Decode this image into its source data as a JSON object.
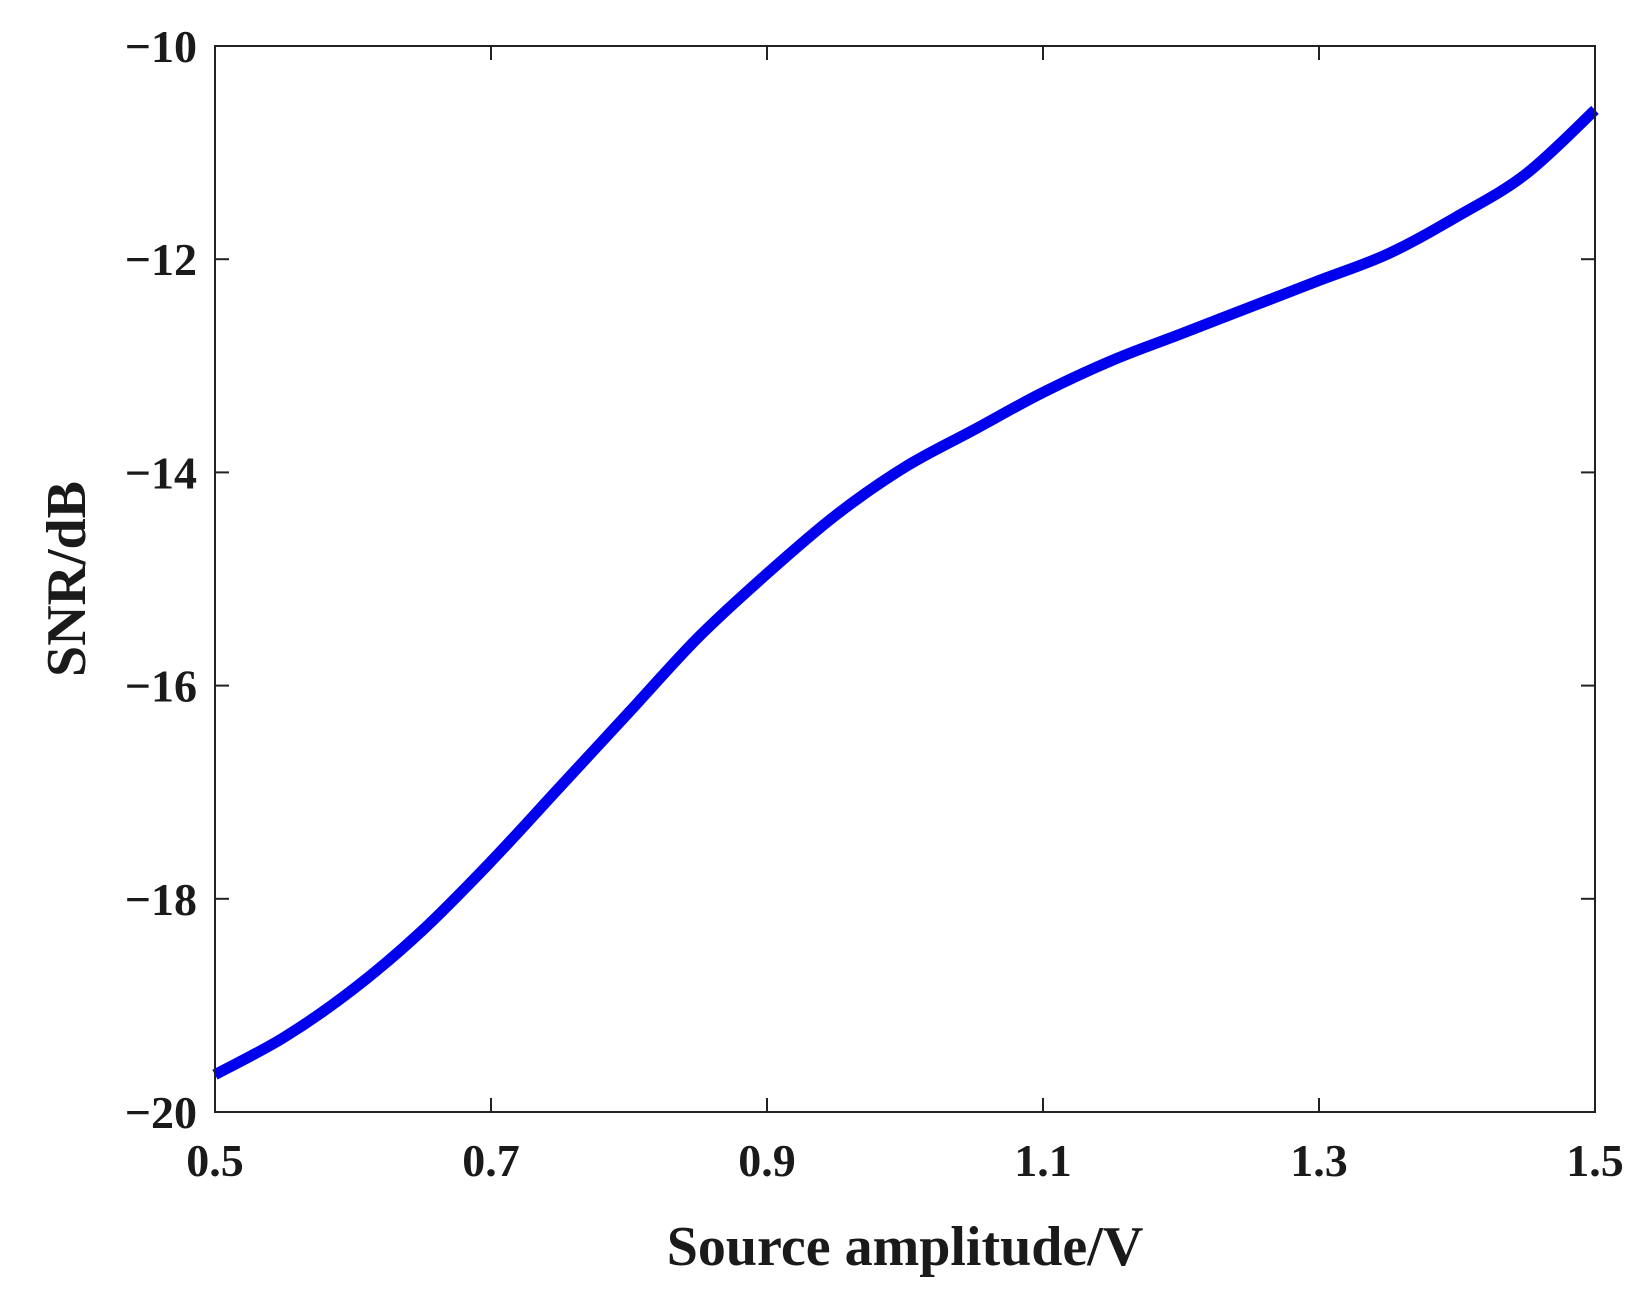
{
  "chart_data": {
    "type": "line",
    "title": "",
    "xlabel": "Source amplitude/V",
    "ylabel": "SNR/dB",
    "xlim": [
      0.5,
      1.5
    ],
    "ylim": [
      -20,
      -10
    ],
    "xticks": [
      0.5,
      0.7,
      0.9,
      1.1,
      1.3,
      1.5
    ],
    "xtick_labels": [
      "0.5",
      "0.7",
      "0.9",
      "1.1",
      "1.3",
      "1.5"
    ],
    "yticks": [
      -20,
      -18,
      -16,
      -14,
      -12,
      -10
    ],
    "ytick_labels": [
      "−20",
      "−18",
      "−16",
      "−14",
      "−12",
      "−10"
    ],
    "grid": false,
    "legend": "none",
    "series": [
      {
        "color": "#0000ee",
        "x": [
          0.5,
          0.55,
          0.6,
          0.65,
          0.7,
          0.75,
          0.8,
          0.85,
          0.9,
          0.95,
          1.0,
          1.05,
          1.1,
          1.15,
          1.2,
          1.25,
          1.3,
          1.35,
          1.4,
          1.45,
          1.5
        ],
        "y": [
          -19.65,
          -19.3,
          -18.85,
          -18.3,
          -17.65,
          -16.95,
          -16.25,
          -15.55,
          -14.95,
          -14.4,
          -13.95,
          -13.6,
          -13.25,
          -12.95,
          -12.7,
          -12.45,
          -12.2,
          -11.95,
          -11.6,
          -11.2,
          -10.6
        ]
      }
    ]
  }
}
